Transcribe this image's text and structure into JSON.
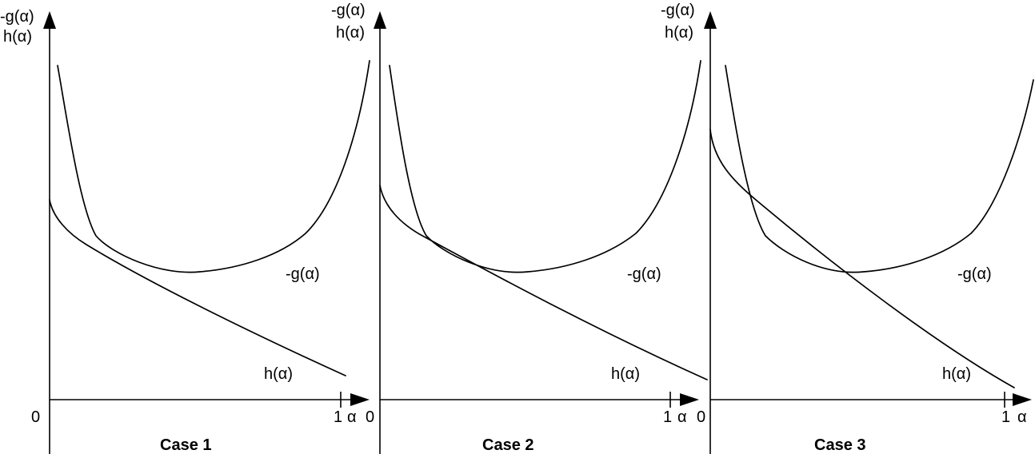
{
  "panels": [
    {
      "id": "case-1",
      "case_label": "Case 1",
      "y_axis_label_top": "-g(α)",
      "y_axis_label_bottom": "h(α)",
      "origin_label": "0",
      "x_end_tick_label": "1",
      "x_axis_label": "α",
      "curve_g_label": "-g(α)",
      "curve_h_label": "h(α)"
    },
    {
      "id": "case-2",
      "case_label": "Case 2",
      "y_axis_label_top": "-g(α)",
      "y_axis_label_bottom": "h(α)",
      "origin_label": "0",
      "x_end_tick_label": "1",
      "x_axis_label": "α",
      "curve_g_label": "-g(α)",
      "curve_h_label": "h(α)"
    },
    {
      "id": "case-3",
      "case_label": "Case 3",
      "y_axis_label_top": "-g(α)",
      "y_axis_label_bottom": "h(α)",
      "origin_label": "0",
      "x_end_tick_label": "1",
      "x_axis_label": "α",
      "curve_g_label": "-g(α)",
      "curve_h_label": "h(α)"
    }
  ]
}
